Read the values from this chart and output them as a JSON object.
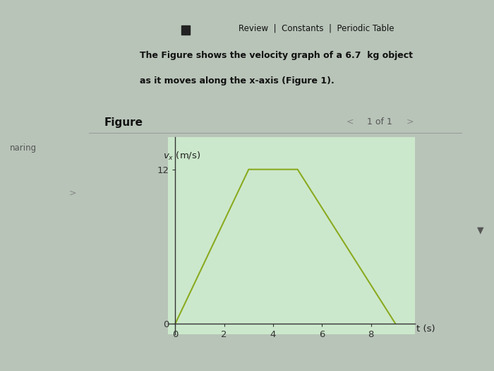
{
  "bg_color": "#b8c4b8",
  "panel_color": "#cdd49a",
  "panel_top_bar": "#c8cc88",
  "figure_bg": "#cce8cc",
  "review_text": "Review  |  Constants  |  Periodic Table",
  "body_text_line1": "The Figure shows the velocity graph of a 6.7  kg object",
  "body_text_line2": "as it moves along the x-axis (Figure 1).",
  "figure_label": "Figure",
  "page_label": "1 of 1",
  "x_ticks": [
    0,
    2,
    4,
    6,
    8
  ],
  "y_ticks": [
    0,
    12
  ],
  "line_x": [
    0,
    3,
    5,
    9
  ],
  "line_y": [
    0,
    12,
    12,
    0
  ],
  "line_color": "#8aaa20",
  "xlim": [
    -0.3,
    9.8
  ],
  "ylim": [
    -0.8,
    14.5
  ],
  "left_label": "naring",
  "left_label2": ">",
  "right_arrow": "▼",
  "white_panel_color": "#e8e8e0"
}
